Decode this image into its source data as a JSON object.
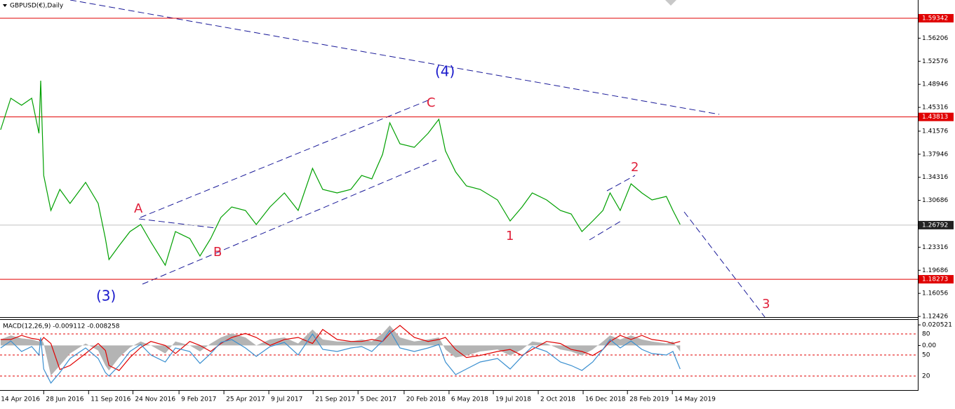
{
  "chart_data": [
    {
      "type": "line",
      "title": "GBPUSD(€),Daily",
      "x": [
        "2016-04-17",
        "2016-05-04",
        "2016-05-22",
        "2016-06-08",
        "2016-06-20",
        "2016-06-23",
        "2016-06-28",
        "2016-07-10",
        "2016-07-25",
        "2016-08-11",
        "2016-09-06",
        "2016-09-27",
        "2016-10-09",
        "2016-10-15",
        "2016-11-01",
        "2016-11-19",
        "2016-12-07",
        "2016-12-24",
        "2017-01-17",
        "2017-02-03",
        "2017-02-27",
        "2017-03-16",
        "2017-04-03",
        "2017-04-20",
        "2017-05-08",
        "2017-05-31",
        "2017-06-18",
        "2017-07-11",
        "2017-08-04",
        "2017-08-27",
        "2017-09-20",
        "2017-10-07",
        "2017-10-31",
        "2017-11-23",
        "2017-12-11",
        "2017-12-28",
        "2018-01-15",
        "2018-01-27",
        "2018-02-13",
        "2018-03-09",
        "2018-04-01",
        "2018-04-19",
        "2018-04-30",
        "2018-05-17",
        "2018-06-04",
        "2018-06-27",
        "2018-07-26",
        "2018-08-16",
        "2018-09-05",
        "2018-09-22",
        "2018-10-16",
        "2018-11-08",
        "2018-11-26",
        "2018-12-14",
        "2019-01-01",
        "2019-01-18",
        "2019-01-30",
        "2019-02-16",
        "2019-03-06",
        "2019-03-24",
        "2019-04-10",
        "2019-05-04",
        "2019-05-15",
        "2019-05-27"
      ],
      "series": [
        {
          "color": "#00a000",
          "values": [
            1.4179,
            1.4676,
            1.4565,
            1.4676,
            1.4124,
            1.4952,
            1.3461,
            1.291,
            1.3241,
            1.302,
            1.3351,
            1.302,
            1.2468,
            1.2137,
            1.2357,
            1.2578,
            1.2689,
            1.2413,
            1.2048,
            1.2578,
            1.2468,
            1.2192,
            1.2468,
            1.2799,
            1.2965,
            1.291,
            1.2689,
            1.2965,
            1.3186,
            1.291,
            1.3572,
            1.3241,
            1.3186,
            1.3241,
            1.3461,
            1.3406,
            1.3793,
            1.4289,
            1.3958,
            1.3903,
            1.4124,
            1.4345,
            1.3848,
            1.3517,
            1.3296,
            1.3241,
            1.3075,
            1.2744,
            1.2965,
            1.3186,
            1.3075,
            1.291,
            1.2854,
            1.2578,
            1.2744,
            1.291,
            1.3186,
            1.291,
            1.3329,
            1.3186,
            1.3075,
            1.3131,
            1.291,
            1.2689
          ]
        }
      ],
      "xlim": [
        "2016-04-16",
        "2020-06-27"
      ],
      "xticks": [
        {
          "value": "2016-04-14",
          "label": "14 Apr 2016"
        },
        {
          "value": "2016-06-28",
          "label": "28 Jun 2016"
        },
        {
          "value": "2016-09-11",
          "label": "11 Sep 2016"
        },
        {
          "value": "2016-11-24",
          "label": "24 Nov 2016"
        },
        {
          "value": "2017-02-09",
          "label": "9 Feb 2017"
        },
        {
          "value": "2017-04-25",
          "label": "25 Apr 2017"
        },
        {
          "value": "2017-07-09",
          "label": "9 Jul 2017"
        },
        {
          "value": "2017-09-21",
          "label": "21 Sep 2017"
        },
        {
          "value": "2017-12-05",
          "label": "5 Dec 2017"
        },
        {
          "value": "2018-02-20",
          "label": "20 Feb 2018"
        },
        {
          "value": "2018-05-06",
          "label": "6 May 2018"
        },
        {
          "value": "2018-07-19",
          "label": "19 Jul 2018"
        },
        {
          "value": "2018-10-02",
          "label": "2 Oct 2018"
        },
        {
          "value": "2018-12-16",
          "label": "16 Dec 2018"
        },
        {
          "value": "2019-02-28",
          "label": "28 Feb 2019"
        },
        {
          "value": "2019-05-14",
          "label": "14 May 2019"
        }
      ],
      "ylim": [
        1.1232,
        1.6221
      ],
      "yticks": [
        1.56206,
        1.52576,
        1.48946,
        1.45316,
        1.41576,
        1.37946,
        1.34316,
        1.30686,
        1.23316,
        1.19686,
        1.16056,
        1.12426
      ],
      "levels": [
        1.59342,
        1.43813,
        1.18273
      ],
      "level_color": "#e00000",
      "last_price": 1.26792,
      "annotations": [
        {
          "text": "(4)",
          "color": "#1a1acc"
        },
        {
          "text": "C",
          "color": "#e0203a"
        },
        {
          "text": "A",
          "color": "#e0203a"
        },
        {
          "text": "B",
          "color": "#e0203a"
        },
        {
          "text": "(3)",
          "color": "#1a1acc"
        },
        {
          "text": "1",
          "color": "#e0203a"
        },
        {
          "text": "2",
          "color": "#e0203a"
        },
        {
          "text": "3",
          "color": "#e0203a"
        }
      ]
    },
    {
      "type": "line",
      "title": "MACD(12,26,9) -0.009112 -0.008258",
      "x": [
        "2016-04-17",
        "2016-05-04",
        "2016-05-22",
        "2016-06-08",
        "2016-06-20",
        "2016-06-23",
        "2016-06-28",
        "2016-07-10",
        "2016-07-25",
        "2016-08-11",
        "2016-09-06",
        "2016-09-27",
        "2016-10-09",
        "2016-10-15",
        "2016-11-01",
        "2016-11-19",
        "2016-12-07",
        "2016-12-24",
        "2017-01-17",
        "2017-02-03",
        "2017-02-27",
        "2017-03-16",
        "2017-04-03",
        "2017-04-20",
        "2017-05-08",
        "2017-05-31",
        "2017-06-18",
        "2017-07-11",
        "2017-08-04",
        "2017-08-27",
        "2017-09-20",
        "2017-10-07",
        "2017-10-31",
        "2017-11-23",
        "2017-12-11",
        "2017-12-28",
        "2018-01-15",
        "2018-01-27",
        "2018-02-13",
        "2018-03-09",
        "2018-04-01",
        "2018-04-19",
        "2018-04-30",
        "2018-05-17",
        "2018-06-04",
        "2018-06-27",
        "2018-07-26",
        "2018-08-16",
        "2018-09-05",
        "2018-09-22",
        "2018-10-16",
        "2018-11-08",
        "2018-11-26",
        "2018-12-14",
        "2019-01-01",
        "2019-01-18",
        "2019-01-30",
        "2019-02-16",
        "2019-03-06",
        "2019-03-24",
        "2019-04-10",
        "2019-05-04",
        "2019-05-15",
        "2019-05-27"
      ],
      "series": [
        {
          "style": "area",
          "color": "#b4b4b4",
          "values": [
            0.006,
            0.01,
            0.007,
            0.006,
            0.004,
            0.008,
            0.002,
            -0.03,
            -0.02,
            -0.008,
            0.002,
            -0.005,
            -0.02,
            -0.025,
            -0.012,
            -0.002,
            0.004,
            0,
            -0.008,
            0.004,
            0,
            -0.006,
            0.002,
            0.008,
            0.012,
            0.008,
            0,
            0.006,
            0.008,
            0.002,
            0.016,
            0.006,
            0.004,
            0.004,
            0.006,
            0.004,
            0.012,
            0.02,
            0.008,
            0.004,
            0.006,
            0.008,
            -0.004,
            -0.012,
            -0.01,
            -0.006,
            -0.004,
            -0.01,
            -0.004,
            0.004,
            0.002,
            -0.004,
            -0.006,
            -0.01,
            -0.004,
            0.004,
            0.01,
            0.006,
            0.01,
            0.006,
            0.004,
            0.002,
            0.004,
            -0.006
          ]
        },
        {
          "style": "line",
          "color": "#e00000",
          "values": [
            0.006,
            0.006,
            0.01,
            0.007,
            0.006,
            0.004,
            0.008,
            0.002,
            -0.024,
            -0.02,
            -0.008,
            0.002,
            -0.005,
            -0.02,
            -0.025,
            -0.012,
            -0.002,
            0.004,
            0,
            -0.008,
            0.004,
            0,
            -0.006,
            0.002,
            0.008,
            0.012,
            0.008,
            0,
            0.006,
            0.008,
            0.002,
            0.016,
            0.006,
            0.004,
            0.004,
            0.006,
            0.004,
            0.012,
            0.02,
            0.008,
            0.004,
            0.006,
            0.008,
            -0.004,
            -0.012,
            -0.01,
            -0.006,
            -0.004,
            -0.01,
            -0.004,
            0.004,
            0.002,
            -0.004,
            -0.006,
            -0.01,
            -0.004,
            0.004,
            0.01,
            0.006,
            0.01,
            0.006,
            0.004,
            0.002,
            0.004
          ]
        },
        {
          "style": "line",
          "axis": "y2",
          "color": "#3a8fd0",
          "values": [
            60,
            70,
            55,
            62,
            50,
            75,
            30,
            10,
            25,
            45,
            60,
            45,
            25,
            20,
            35,
            55,
            65,
            50,
            40,
            60,
            55,
            38,
            52,
            68,
            72,
            60,
            48,
            62,
            68,
            50,
            80,
            58,
            55,
            60,
            62,
            55,
            70,
            85,
            60,
            55,
            60,
            65,
            40,
            22,
            30,
            40,
            45,
            30,
            48,
            62,
            55,
            40,
            35,
            28,
            40,
            58,
            72,
            60,
            70,
            58,
            52,
            50,
            55,
            30
          ]
        }
      ],
      "xlim": [
        "2016-04-16",
        "2020-06-27"
      ],
      "ylim": [
        -0.0445,
        0.0255
      ],
      "yticks": [
        0.020521,
        {
          "value": 0,
          "label": "0.00"
        }
      ],
      "y2lim": [
        0,
        100
      ],
      "y2ticks": [
        80,
        50,
        20
      ],
      "y2_level_color": "#e00000"
    }
  ]
}
